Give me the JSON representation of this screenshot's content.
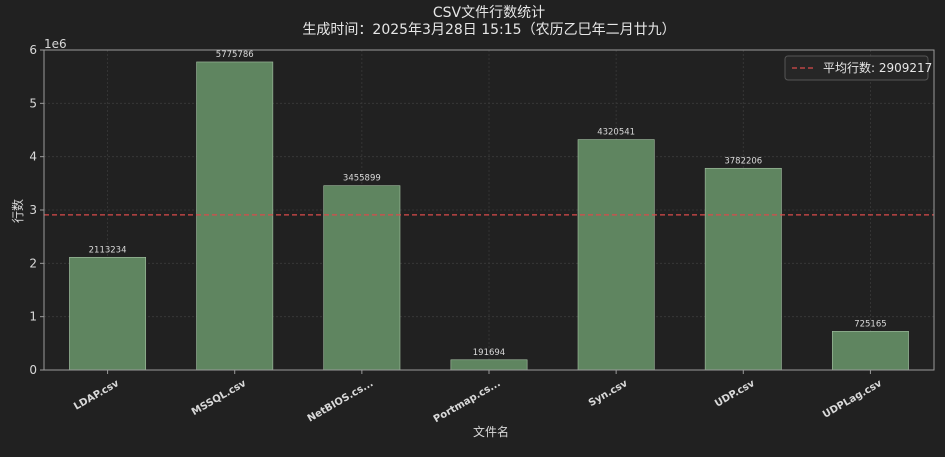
{
  "chart_data": {
    "type": "bar",
    "title": "CSV文件行数统计",
    "subtitle": "生成时间：2025年3月28日 15:15（农历乙巳年二月廿九）",
    "xlabel": "文件名",
    "ylabel": "行数",
    "y_scale_label": "1e6",
    "categories": [
      "LDAP.csv",
      "MSSQL.csv",
      "NetBIOS.cs...",
      "Portmap.cs...",
      "Syn.csv",
      "UDP.csv",
      "UDPLag.csv"
    ],
    "values": [
      2113234,
      5775786,
      3455899,
      191694,
      4320541,
      3782206,
      725165
    ],
    "value_labels": [
      "2113234",
      "5775786",
      "3455899",
      "191694",
      "4320541",
      "3782206",
      "725165"
    ],
    "ylim": [
      0,
      6000000
    ],
    "yticks": [
      0,
      1000000,
      2000000,
      3000000,
      4000000,
      5000000,
      6000000
    ],
    "ytick_labels": [
      "0",
      "1",
      "2",
      "3",
      "4",
      "5",
      "6"
    ],
    "mean_line": {
      "value": 2909217,
      "label": "平均行数: 2909217"
    },
    "legend_position": "top-right",
    "grid": true,
    "colors": {
      "background": "#212121",
      "bar": "#5f8560",
      "bar_edge": "#a7c3a6",
      "mean_line": "#d94b4b",
      "axis": "#9a9a9a",
      "grid": "#3a3a3a"
    }
  }
}
